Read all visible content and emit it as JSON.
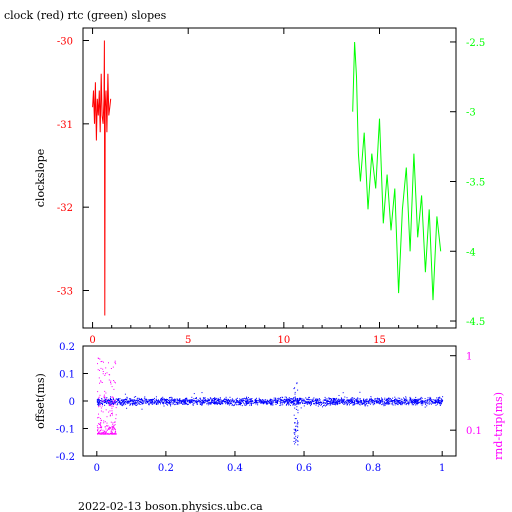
{
  "title": "clock (red) rtc (green) slopes",
  "footer": "2022-02-13 boson.physics.ubc.ca",
  "colors": {
    "clock": "#ff0000",
    "rtc": "#00ff00",
    "offset": "#0000ff",
    "rndtrip": "#ff00ff",
    "axis": "#000000"
  },
  "chart_data": [
    {
      "type": "line",
      "title": "clock (red) rtc (green) slopes",
      "xlabel": "",
      "ylabel": "clockslope",
      "y2label": "",
      "xlim": [
        -0.5,
        19.0
      ],
      "ylim": [
        -33.45,
        -29.85
      ],
      "y2lim": [
        -4.55,
        -2.4
      ],
      "xticks": [
        0,
        5,
        10,
        15
      ],
      "yticks": [
        -30,
        -31,
        -32,
        -33
      ],
      "y2ticks": [
        -2.5,
        -3,
        -3.5,
        -4,
        -4.5
      ],
      "grid": false,
      "series": [
        {
          "name": "clock",
          "axis": "left",
          "color": "#ff0000",
          "x": [
            0.0,
            0.05,
            0.1,
            0.15,
            0.2,
            0.25,
            0.3,
            0.35,
            0.4,
            0.45,
            0.5,
            0.55,
            0.6,
            0.62,
            0.64,
            0.66,
            0.7,
            0.75,
            0.8,
            0.85,
            0.9,
            0.95
          ],
          "y": [
            -30.8,
            -30.6,
            -31.0,
            -30.5,
            -31.2,
            -30.7,
            -30.9,
            -30.6,
            -31.1,
            -30.4,
            -30.9,
            -31.0,
            -30.7,
            -30.0,
            -33.3,
            -30.8,
            -30.6,
            -31.1,
            -30.4,
            -30.9,
            -30.8,
            -30.7
          ]
        },
        {
          "name": "rtc",
          "axis": "right",
          "color": "#00ff00",
          "x": [
            13.6,
            13.7,
            13.8,
            13.9,
            14.0,
            14.2,
            14.4,
            14.6,
            14.8,
            15.0,
            15.2,
            15.4,
            15.6,
            15.8,
            16.0,
            16.2,
            16.4,
            16.6,
            16.8,
            17.0,
            17.2,
            17.4,
            17.6,
            17.8,
            18.0,
            18.2
          ],
          "y": [
            -3.0,
            -2.5,
            -2.75,
            -3.3,
            -3.5,
            -3.15,
            -3.7,
            -3.3,
            -3.55,
            -3.05,
            -3.8,
            -3.45,
            -3.85,
            -3.55,
            -4.3,
            -3.7,
            -3.4,
            -4.0,
            -3.3,
            -3.9,
            -3.6,
            -4.15,
            -3.7,
            -4.35,
            -3.75,
            -4.0
          ]
        }
      ]
    },
    {
      "type": "scatter",
      "xlabel": "",
      "ylabel": "offset(ms)",
      "y2label": "rnd-trip(ms)",
      "xlim": [
        -0.04,
        1.04
      ],
      "ylim": [
        -0.2,
        0.2
      ],
      "y2lim": [
        0.045,
        1.35
      ],
      "y2scale": "log",
      "xticks": [
        0,
        0.2,
        0.4,
        0.6,
        0.8,
        1
      ],
      "yticks": [
        0.2,
        0.1,
        0,
        -0.1,
        -0.2
      ],
      "y2ticks": [
        1,
        0.1
      ],
      "grid": false,
      "series": [
        {
          "name": "offset",
          "axis": "left",
          "color": "#0000ff",
          "x_range": [
            0,
            1
          ],
          "y_center": 0.0,
          "y_spread": 0.012,
          "spike_x": 0.575,
          "spike_y": [
            -0.16,
            0.07
          ]
        },
        {
          "name": "rnd-trip",
          "axis": "right",
          "color": "#ff00ff",
          "x_range": [
            0,
            0.055
          ],
          "y_range": [
            0.09,
            1.0
          ]
        }
      ]
    }
  ]
}
